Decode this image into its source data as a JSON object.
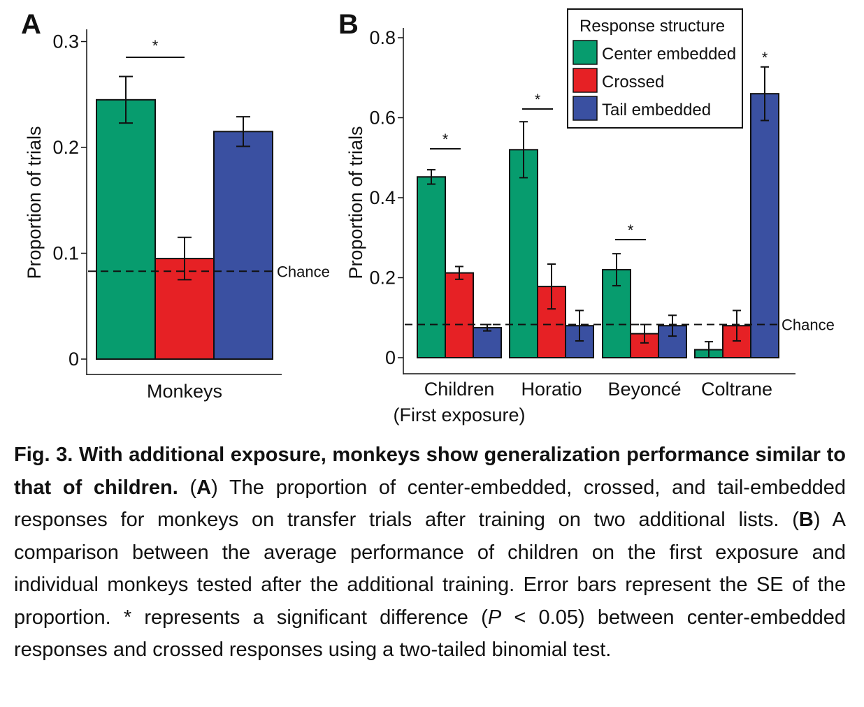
{
  "colors": {
    "center_embedded": "#079c6e",
    "crossed": "#e62125",
    "tail_embedded": "#3a50a1"
  },
  "panels": {
    "a_letter": "A",
    "b_letter": "B"
  },
  "chance_label": "Chance",
  "significance_mark": "*",
  "chart_data": [
    {
      "panel": "A",
      "type": "bar",
      "title": "",
      "xlabel": "",
      "ylabel": "Proportion of trials",
      "ylim": [
        0,
        0.3
      ],
      "yticks": [
        "0",
        "0.1",
        "0.2",
        "0.3"
      ],
      "categories": [
        "Monkeys"
      ],
      "series": [
        {
          "name": "Center embedded",
          "values": [
            0.245
          ],
          "error": [
            0.022
          ]
        },
        {
          "name": "Crossed",
          "values": [
            0.095
          ],
          "error": [
            0.02
          ]
        },
        {
          "name": "Tail embedded",
          "values": [
            0.215
          ],
          "error": [
            0.014
          ]
        }
      ],
      "chance_level": 0.083,
      "significance": [
        {
          "category": 0,
          "text": "*"
        }
      ],
      "grid": false
    },
    {
      "panel": "B",
      "type": "bar",
      "title": "",
      "xlabel": "",
      "ylabel": "Proportion of trials",
      "ylim": [
        0,
        0.8
      ],
      "yticks": [
        "0",
        "0.2",
        "0.4",
        "0.6",
        "0.8"
      ],
      "categories": [
        "Children",
        "Horatio",
        "Beyoncé",
        "Coltrane"
      ],
      "category_sublabels": [
        "(First exposure)",
        "",
        "",
        ""
      ],
      "series": [
        {
          "name": "Center embedded",
          "values": [
            0.452,
            0.52,
            0.22,
            0.02
          ],
          "error": [
            0.018,
            0.07,
            0.04,
            0.02
          ]
        },
        {
          "name": "Crossed",
          "values": [
            0.212,
            0.178,
            0.06,
            0.08
          ],
          "error": [
            0.016,
            0.056,
            0.023,
            0.038
          ]
        },
        {
          "name": "Tail embedded",
          "values": [
            0.075,
            0.08,
            0.08,
            0.66
          ],
          "error": [
            0.008,
            0.038,
            0.026,
            0.067
          ]
        }
      ],
      "chance_level": 0.083,
      "significance": [
        {
          "category": 0,
          "text": "*"
        },
        {
          "category": 1,
          "text": "*"
        },
        {
          "category": 2,
          "text": "*"
        },
        {
          "category": 3,
          "text": "*",
          "over_series": 2
        }
      ],
      "legend": {
        "title": "Response structure",
        "placement": "top-right",
        "entries": [
          "Center embedded",
          "Crossed",
          "Tail embedded"
        ]
      },
      "grid": false
    }
  ],
  "caption": {
    "fig_label": "Fig. 3.",
    "title": "With additional exposure, monkeys show generalization performance similar to that of children.",
    "part_a_open": "(",
    "part_a_letter": "A",
    "part_a_text": ") The proportion of center-embedded, crossed, and tail-embedded responses for monkeys on transfer trials after training on two additional lists. (",
    "part_b_letter": "B",
    "part_b_text": ") A comparison between the average performance of children on the first exposure and individual monkeys tested after the additional training. Error bars represent the SE of the proportion. * represents a significant difference (",
    "p_symbol": "P",
    "p_text": " < 0.05) between center-embedded responses and crossed responses using a two-tailed binomial test."
  }
}
